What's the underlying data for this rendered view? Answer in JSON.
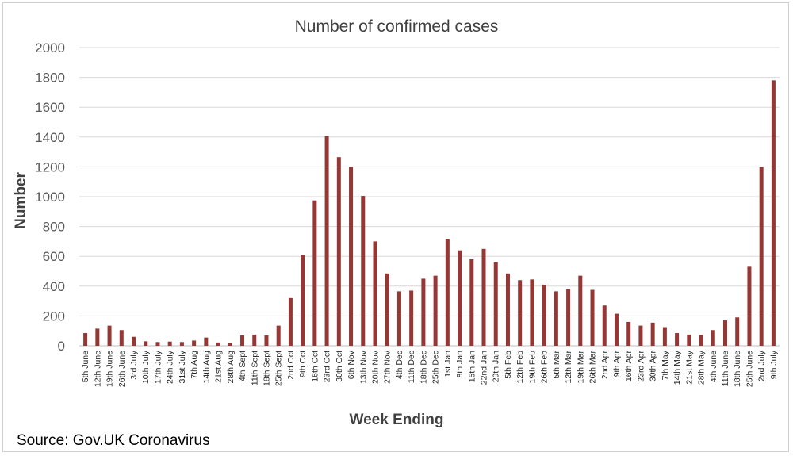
{
  "chart_data": {
    "type": "bar",
    "title": "Number of confirmed cases",
    "xlabel": "Week Ending",
    "ylabel": "Number",
    "ylim": [
      0,
      2000
    ],
    "yticks": [
      0,
      200,
      400,
      600,
      800,
      1000,
      1200,
      1400,
      1600,
      1800,
      2000
    ],
    "grid": true,
    "legend": "none",
    "bar_color": "#953735",
    "categories": [
      "5th June",
      "12th June",
      "19th June",
      "26th June",
      "3rd July",
      "10th July",
      "17th July",
      "24th July",
      "31st July",
      "7th Aug",
      "14th Aug",
      "21st Aug",
      "28th Aug",
      "4th Sept",
      "11th Sept",
      "18th Sept",
      "25th Sept",
      "2nd Oct",
      "9th Oct",
      "16th Oct",
      "23rd Oct",
      "30th Oct",
      "6th Nov",
      "13th Nov",
      "20th Nov",
      "27th Nov",
      "4th Dec",
      "11th Dec",
      "18th Dec",
      "25th Dec",
      "1st Jan",
      "8th Jan",
      "15th Jan",
      "22nd Jan",
      "29th Jan",
      "5th Feb",
      "12th Feb",
      "19th Feb",
      "26th Feb",
      "5th Mar",
      "12th Mar",
      "19th Mar",
      "26th Mar",
      "2nd Apr",
      "9th Apr",
      "16th Apr",
      "23rd Apr",
      "30th Apr",
      "7th May",
      "14th May",
      "21st May",
      "28th May",
      "4th June",
      "11th June",
      "18th June",
      "25th June",
      "2nd July",
      "9th July"
    ],
    "values": [
      85,
      115,
      135,
      105,
      60,
      30,
      25,
      28,
      25,
      35,
      55,
      22,
      18,
      70,
      75,
      70,
      135,
      320,
      610,
      975,
      1405,
      1265,
      1200,
      1005,
      700,
      485,
      365,
      370,
      450,
      470,
      715,
      640,
      580,
      650,
      560,
      485,
      440,
      445,
      410,
      365,
      380,
      470,
      375,
      270,
      215,
      160,
      135,
      155,
      125,
      85,
      75,
      72,
      105,
      170,
      190,
      530,
      1200,
      1780
    ]
  },
  "source": "Source: Gov.UK Coronavirus"
}
